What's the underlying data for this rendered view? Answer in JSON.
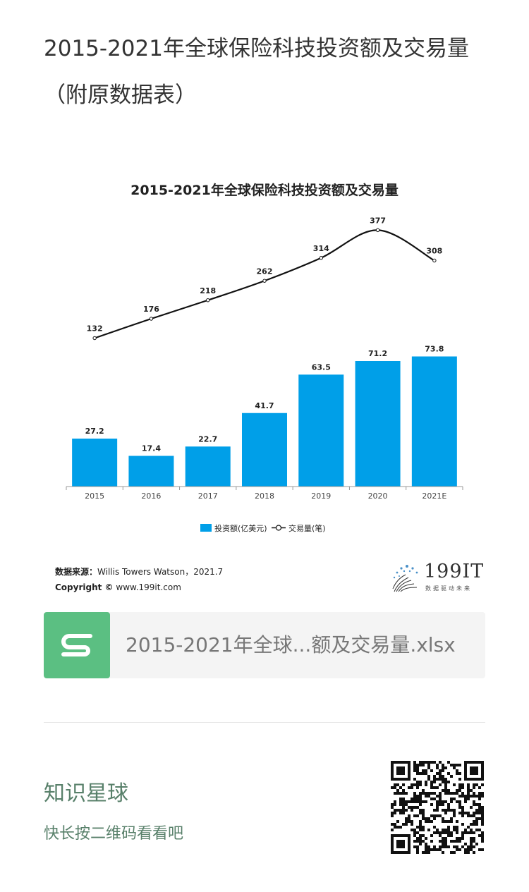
{
  "post": {
    "title": "2015-2021年全球保险科技投资额及交易量（附原数据表）"
  },
  "chart_data": {
    "type": "bar",
    "title": "2015-2021年全球保险科技投资额及交易量",
    "categories": [
      "2015",
      "2016",
      "2017",
      "2018",
      "2019",
      "2020",
      "2021E"
    ],
    "series": [
      {
        "name": "投资额(亿美元)",
        "type": "bar",
        "color": "#009fe8",
        "values": [
          27.2,
          17.4,
          22.7,
          41.7,
          63.5,
          71.2,
          73.8
        ]
      },
      {
        "name": "交易量(笔)",
        "type": "line",
        "color": "#111111",
        "values": [
          132,
          176,
          218,
          262,
          314,
          377,
          308
        ]
      }
    ],
    "bar_labels": [
      "27.2",
      "17.4",
      "22.7",
      "41.7",
      "63.5",
      "71.2",
      "73.8"
    ],
    "line_labels": [
      "132",
      "176",
      "218",
      "262",
      "314",
      "377",
      "308"
    ],
    "legend": {
      "bar": "投资额(亿美元)",
      "line": "交易量(笔)",
      "placement": "bottom-center"
    },
    "bar_range": [
      0,
      80
    ],
    "line_range": [
      0,
      400
    ],
    "source_label": "数据来源：",
    "source_value": "Willis Towers Watson，2021.7",
    "copyright": "Copyright ©",
    "copyright_site": "www.199it.com"
  },
  "logo": {
    "text": "199IT",
    "tagline": "数据驱动未来"
  },
  "file": {
    "name": "2015-2021年全球...额及交易量.xlsx",
    "icon": "spreadsheet-s-icon"
  },
  "promo": {
    "title": "知识星球",
    "subtitle": "快长按二维码看看吧",
    "qr_icon": "qr-code-icon"
  },
  "colors": {
    "bar": "#009fe8",
    "line": "#111111",
    "file_icon": "#5bbf82",
    "promo": "#58806a"
  }
}
